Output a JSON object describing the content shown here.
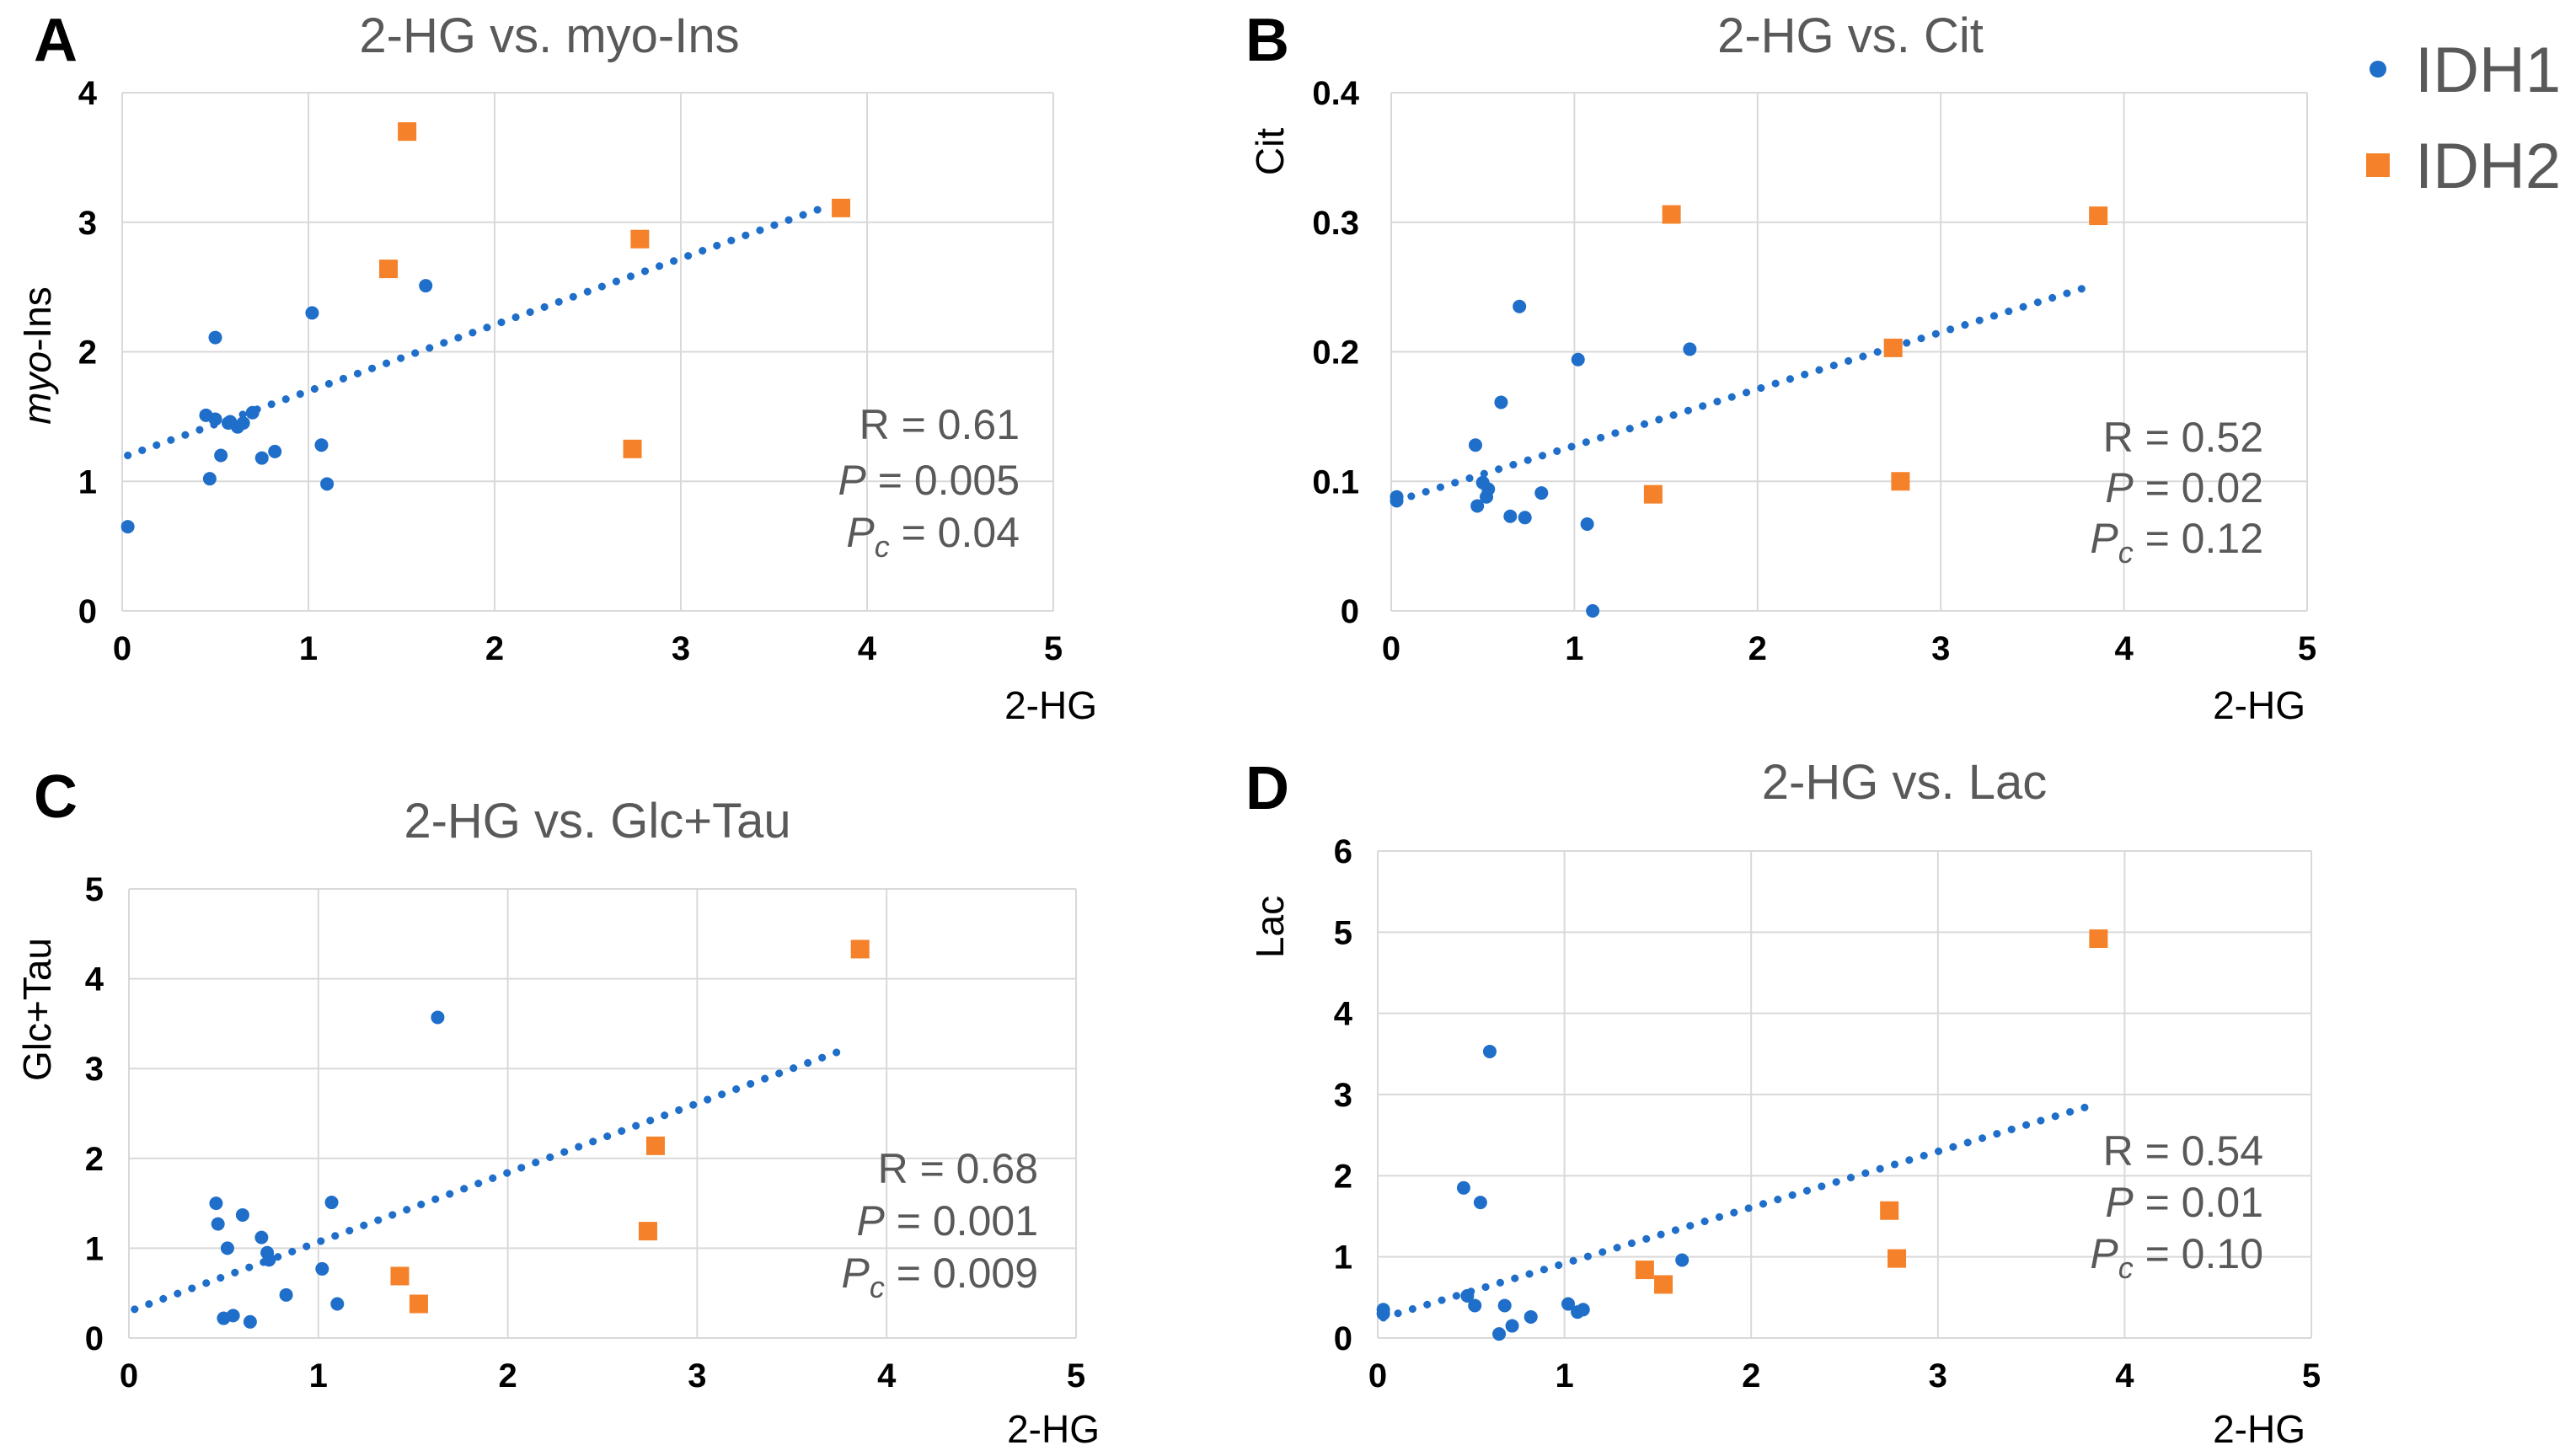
{
  "legend": [
    {
      "name": "IDH1",
      "color": "#1f6ec9",
      "marker": "circle"
    },
    {
      "name": "IDH2",
      "color": "#f5822a",
      "marker": "square"
    }
  ],
  "chart_data": [
    {
      "panel": "A",
      "type": "scatter",
      "title": "2-HG vs. myo-Ins",
      "xlabel": "2-HG",
      "ylabel_italic": "myo",
      "ylabel_rest": "-Ins",
      "xlim": [
        0,
        5
      ],
      "ylim": [
        0,
        4
      ],
      "xticks": [
        "0",
        "1",
        "2",
        "3",
        "4",
        "5"
      ],
      "yticks": [
        "0",
        "1",
        "2",
        "3",
        "4"
      ],
      "stats": {
        "r": "R = 0.61",
        "p_letter": "P",
        "p_value": " = 0.005",
        "pc_letter": "P",
        "pc_sub": "c",
        "pc_value": " = 0.04"
      },
      "series": [
        {
          "name": "IDH1",
          "x": [
            0.03,
            0.45,
            0.47,
            0.5,
            0.53,
            0.58,
            0.62,
            0.65,
            0.7,
            0.75,
            0.82,
            1.02,
            1.07,
            1.1,
            1.63,
            0.5,
            0.57
          ],
          "y": [
            0.65,
            1.51,
            1.02,
            2.11,
            1.2,
            1.46,
            1.42,
            1.45,
            1.53,
            1.18,
            1.23,
            2.3,
            1.28,
            0.98,
            2.51,
            1.48,
            1.45
          ]
        },
        {
          "name": "IDH2",
          "x": [
            1.43,
            1.53,
            2.74,
            2.78,
            3.86
          ],
          "y": [
            2.64,
            3.7,
            1.25,
            2.87,
            3.11
          ]
        }
      ],
      "trendline": {
        "x": [
          0.03,
          3.8
        ],
        "y": [
          1.2,
          3.13
        ]
      }
    },
    {
      "panel": "B",
      "type": "scatter",
      "title": "2-HG vs. Cit",
      "xlabel": "2-HG",
      "ylabel": "Cit",
      "xlim": [
        0,
        5
      ],
      "ylim": [
        0,
        0.4
      ],
      "xticks": [
        "0",
        "1",
        "2",
        "3",
        "4",
        "5"
      ],
      "yticks": [
        "0",
        "0.1",
        "0.2",
        "0.3",
        "0.4"
      ],
      "stats": {
        "r": "R = 0.52",
        "p_letter": "P",
        "p_value": " = 0.02",
        "pc_letter": "P",
        "pc_sub": "c",
        "pc_value": " = 0.12"
      },
      "series": [
        {
          "name": "IDH1",
          "x": [
            0.03,
            0.03,
            0.46,
            0.47,
            0.5,
            0.52,
            0.53,
            0.6,
            0.65,
            0.7,
            0.73,
            0.82,
            1.02,
            1.07,
            1.1,
            1.63
          ],
          "y": [
            0.088,
            0.085,
            0.128,
            0.081,
            0.099,
            0.088,
            0.094,
            0.161,
            0.073,
            0.235,
            0.072,
            0.091,
            0.194,
            0.067,
            0.0,
            0.202
          ]
        },
        {
          "name": "IDH2",
          "x": [
            1.43,
            1.53,
            2.74,
            2.78,
            3.86
          ],
          "y": [
            0.09,
            0.306,
            0.203,
            0.1,
            0.305
          ]
        }
      ],
      "trendline": {
        "x": [
          0.03,
          3.8
        ],
        "y": [
          0.085,
          0.25
        ]
      }
    },
    {
      "panel": "C",
      "type": "scatter",
      "title": "2-HG vs. Glc+Tau",
      "xlabel": "2-HG",
      "ylabel": "Glc+Tau",
      "xlim": [
        0,
        5
      ],
      "ylim": [
        0,
        5
      ],
      "xticks": [
        "0",
        "1",
        "2",
        "3",
        "4",
        "5"
      ],
      "yticks": [
        "0",
        "1",
        "2",
        "3",
        "4",
        "5"
      ],
      "stats": {
        "r": "R = 0.68",
        "p_letter": "P",
        "p_value": " = 0.001",
        "pc_letter": "P",
        "pc_sub": "c",
        "pc_value": " = 0.009"
      },
      "series": [
        {
          "name": "IDH1",
          "x": [
            0.46,
            0.47,
            0.5,
            0.52,
            0.55,
            0.6,
            0.64,
            0.7,
            0.73,
            0.74,
            0.83,
            1.02,
            1.07,
            1.1,
            1.63
          ],
          "y": [
            1.5,
            1.27,
            0.22,
            1.0,
            0.25,
            1.37,
            0.18,
            1.12,
            0.95,
            0.87,
            0.48,
            0.77,
            1.51,
            0.38,
            3.57
          ]
        },
        {
          "name": "IDH2",
          "x": [
            1.43,
            1.53,
            2.74,
            2.78,
            3.86
          ],
          "y": [
            0.69,
            0.38,
            1.19,
            2.14,
            4.33
          ]
        }
      ],
      "trendline": {
        "x": [
          0.03,
          3.8
        ],
        "y": [
          0.32,
          3.23
        ]
      }
    },
    {
      "panel": "D",
      "type": "scatter",
      "title": "2-HG vs. Lac",
      "xlabel": "2-HG",
      "ylabel": "Lac",
      "xlim": [
        0,
        5
      ],
      "ylim": [
        0,
        6
      ],
      "xticks": [
        "0",
        "1",
        "2",
        "3",
        "4",
        "5"
      ],
      "yticks": [
        "0",
        "1",
        "2",
        "3",
        "4",
        "5",
        "6"
      ],
      "stats": {
        "r": "R = 0.54",
        "p_letter": "P",
        "p_value": " = 0.01",
        "pc_letter": "P",
        "pc_sub": "c",
        "pc_value": " = 0.10"
      },
      "series": [
        {
          "name": "IDH1",
          "x": [
            0.03,
            0.03,
            0.46,
            0.48,
            0.52,
            0.55,
            0.6,
            0.65,
            0.68,
            0.72,
            0.82,
            1.02,
            1.07,
            1.1,
            1.63
          ],
          "y": [
            0.35,
            0.3,
            1.85,
            0.52,
            0.4,
            1.67,
            3.53,
            0.05,
            0.4,
            0.15,
            0.26,
            0.42,
            0.32,
            0.35,
            0.96
          ]
        },
        {
          "name": "IDH2",
          "x": [
            1.43,
            1.53,
            2.74,
            2.78,
            3.86
          ],
          "y": [
            0.84,
            0.66,
            1.57,
            0.98,
            4.92
          ]
        }
      ],
      "trendline": {
        "x": [
          0.03,
          3.8
        ],
        "y": [
          0.25,
          2.85
        ]
      }
    }
  ]
}
